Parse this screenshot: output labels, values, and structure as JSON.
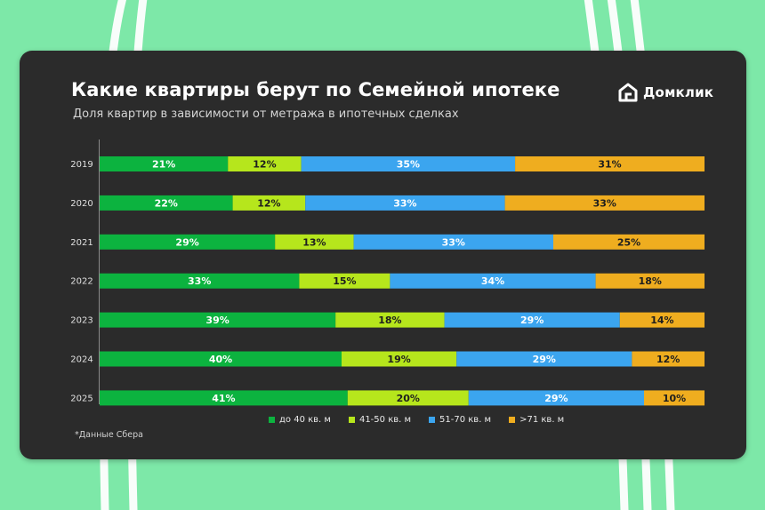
{
  "title": "Какие квартиры берут по Семейной ипотеке",
  "subtitle": "Доля квартир в зависимости от метража в ипотечных сделках",
  "logo": {
    "text": "Домклик",
    "icon": "house-logo-icon"
  },
  "footnote": "*Данные Сбера",
  "colors": {
    "background": "#7de8a8",
    "card": "#2b2b2b",
    "series": [
      "#0cb33f",
      "#b6e61c",
      "#3ba5ef",
      "#efad1f"
    ]
  },
  "chart_data": {
    "type": "bar",
    "orientation": "horizontal",
    "stacked": "100%",
    "categories": [
      "2019",
      "2020",
      "2021",
      "2022",
      "2023",
      "2024",
      "2025"
    ],
    "series": [
      {
        "name": "до 40 кв. м",
        "values": [
          21,
          22,
          29,
          33,
          39,
          40,
          41
        ]
      },
      {
        "name": "41-50 кв. м",
        "values": [
          12,
          12,
          13,
          15,
          18,
          19,
          20
        ]
      },
      {
        "name": "51-70 кв. м",
        "values": [
          35,
          33,
          33,
          34,
          29,
          29,
          29
        ]
      },
      {
        "name": ">71 кв. м",
        "values": [
          31,
          33,
          25,
          18,
          14,
          12,
          10
        ]
      }
    ],
    "value_suffix": "%",
    "legend_position": "bottom",
    "grid": false
  }
}
